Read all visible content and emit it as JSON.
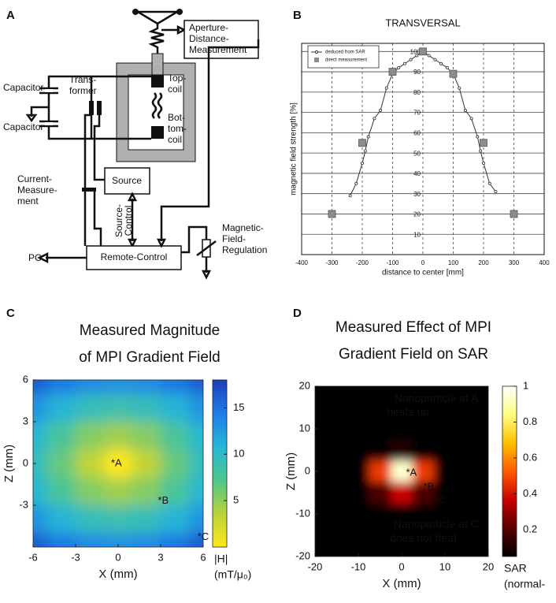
{
  "panel_labels": [
    "A",
    "B",
    "C",
    "D"
  ],
  "diagram": {
    "aperture_box": [
      "Aperture-",
      "Distance-",
      "Measurement"
    ],
    "top_coil": [
      "Top-",
      "coil"
    ],
    "bottom_coil": [
      "Bot-",
      "tom-",
      "coil"
    ],
    "capacitors": [
      "Capacitor",
      "Capacitor"
    ],
    "transformer": [
      "Trans-",
      "former"
    ],
    "source": "Source",
    "current_measurement": [
      "Current-",
      "Measure-",
      "ment"
    ],
    "source_control": [
      "Source-",
      "Control"
    ],
    "remote_control": "Remote-Control",
    "pc": "PC",
    "field_regulation": [
      "Magnetic-",
      "Field-",
      "Regulation"
    ]
  },
  "chart_data": [
    {
      "type": "line",
      "title": "TRANSVERSAL",
      "x_label": "distance to center [mm]",
      "y_label": "magnetic field strength [%]",
      "xlim": [
        -400,
        400
      ],
      "ylim": [
        0,
        104
      ],
      "xticks": [
        -400,
        -300,
        -200,
        -100,
        0,
        100,
        200,
        300,
        400
      ],
      "yticks": [
        10,
        20,
        30,
        40,
        50,
        60,
        70,
        80,
        90,
        100
      ],
      "grid": true,
      "legend": "upper left",
      "series": [
        {
          "name": "deduced from SAR",
          "color": "#333333",
          "marker": "circle",
          "line": true,
          "x": [
            -240,
            -220,
            -200,
            -190,
            -180,
            -160,
            -140,
            -120,
            -100,
            -80,
            -60,
            -40,
            -20,
            0,
            20,
            40,
            60,
            80,
            100,
            120,
            140,
            160,
            180,
            190,
            200,
            220,
            240
          ],
          "values": [
            29,
            35,
            45,
            51,
            58,
            67,
            71,
            82,
            89,
            92,
            94,
            96,
            98,
            100,
            98,
            96,
            94,
            92,
            89,
            82,
            71,
            67,
            58,
            51,
            45,
            35,
            31
          ]
        },
        {
          "name": "direct measurement",
          "color": "#8c8c8c",
          "marker": "square",
          "line": false,
          "x": [
            -300,
            -200,
            -100,
            0,
            100,
            200,
            300
          ],
          "values": [
            20,
            55,
            90,
            100,
            89,
            55,
            20
          ]
        }
      ]
    },
    {
      "type": "heatmap",
      "title": [
        "Measured Magnitude",
        "of MPI Gradient Field"
      ],
      "x_label": "X (mm)",
      "y_label": "Z (mm)",
      "xlim": [
        -6,
        6
      ],
      "ylim": [
        -6,
        6
      ],
      "xticks": [
        -6,
        -3,
        0,
        3,
        6
      ],
      "yticks": [
        -3,
        0,
        3,
        6
      ],
      "x": [
        -6,
        -4,
        -2,
        0,
        2,
        4,
        6
      ],
      "y": [
        6,
        4,
        2,
        0,
        -2,
        -4,
        -6
      ],
      "values": [
        [
          16.3,
          14.7,
          13.6,
          13.2,
          13.6,
          14.7,
          16.3
        ],
        [
          13.0,
          10.9,
          9.4,
          8.8,
          9.4,
          10.9,
          13.0
        ],
        [
          10.6,
          7.7,
          5.4,
          4.4,
          5.4,
          7.7,
          10.6
        ],
        [
          9.6,
          6.4,
          3.2,
          0,
          3.2,
          6.4,
          9.6
        ],
        [
          10.6,
          7.7,
          5.4,
          4.4,
          5.4,
          7.7,
          10.6
        ],
        [
          13.0,
          10.9,
          9.4,
          8.8,
          9.4,
          10.9,
          13.0
        ],
        [
          16.3,
          14.7,
          13.6,
          13.2,
          13.6,
          14.7,
          16.3
        ]
      ],
      "clim": [
        0,
        18
      ],
      "colorbar_ticks": [
        5,
        10,
        15
      ],
      "colorbar_label": [
        "|H|",
        "(mT/μ₀)"
      ],
      "colormap": [
        "#ffe81a",
        "#b9d23a",
        "#4fc68f",
        "#25b7d6",
        "#1f7de8",
        "#1c3fb5"
      ],
      "annotations": [
        {
          "text": "*A",
          "x": -0.5,
          "y": 0,
          "color": "#111111"
        },
        {
          "text": "*B",
          "x": 2.8,
          "y": -2.7,
          "color": "#111111"
        },
        {
          "text": "*C",
          "x": 5.6,
          "y": -5.3,
          "color": "#ffffff"
        }
      ]
    },
    {
      "type": "heatmap",
      "title": [
        "Measured Effect of MPI",
        "Gradient Field on SAR"
      ],
      "x_label": "X (mm)",
      "y_label": "Z (mm)",
      "xlim": [
        -20,
        20
      ],
      "ylim": [
        -20,
        20
      ],
      "xticks": [
        -20,
        -10,
        0,
        10,
        20
      ],
      "yticks": [
        -20,
        -10,
        0,
        10,
        20
      ],
      "x": [
        -20,
        -15,
        -10,
        -5,
        0,
        5,
        10,
        15,
        20
      ],
      "y": [
        20,
        15,
        10,
        5,
        0,
        -5,
        -10,
        -15,
        -20
      ],
      "values": [
        [
          0,
          0,
          0,
          0,
          0,
          0,
          0,
          0,
          0
        ],
        [
          0,
          0,
          0,
          0,
          0,
          0,
          0,
          0,
          0
        ],
        [
          0,
          0,
          0,
          0,
          0,
          0,
          0,
          0,
          0
        ],
        [
          0,
          0,
          0.01,
          0.05,
          0.11,
          0.05,
          0.01,
          0,
          0
        ],
        [
          0,
          0,
          0.06,
          0.47,
          0.94,
          0.47,
          0.06,
          0,
          0
        ],
        [
          0,
          0,
          0.02,
          0.18,
          0.37,
          0.18,
          0.02,
          0,
          0
        ],
        [
          0,
          0,
          0,
          0,
          0.01,
          0,
          0,
          0,
          0
        ],
        [
          0,
          0,
          0,
          0,
          0,
          0,
          0,
          0,
          0
        ],
        [
          0,
          0,
          0,
          0,
          0,
          0,
          0,
          0,
          0
        ]
      ],
      "clim": [
        0.05,
        1
      ],
      "colorbar_ticks": [
        0.2,
        0.4,
        0.6,
        0.8,
        1
      ],
      "colorbar_label": [
        "SAR",
        "(normal-"
      ],
      "colormap": [
        "#000000",
        "#5a0000",
        "#c80000",
        "#ff5a00",
        "#ffc000",
        "#ffff80",
        "#ffffff"
      ],
      "annotations": [
        {
          "text": "*A",
          "x": 1,
          "y": -0.4,
          "color": "#111111"
        },
        {
          "text": "*B",
          "x": 5,
          "y": -3.7,
          "color": "#ff9a9a"
        },
        {
          "text": "*C",
          "x": 7.5,
          "y": -6.9,
          "color": "#ffffff"
        },
        {
          "text": "Nanoparticle at A",
          "x": 8,
          "y": 17,
          "color": "#ffffff"
        },
        {
          "text": "heats up",
          "x": 1.5,
          "y": 13.8,
          "color": "#ffffff"
        },
        {
          "text": "Nanoparticle at C",
          "x": 8,
          "y": -12.6,
          "color": "#ffffff"
        },
        {
          "text": "does not heat",
          "x": 5,
          "y": -15.8,
          "color": "#ffffff"
        }
      ]
    }
  ]
}
